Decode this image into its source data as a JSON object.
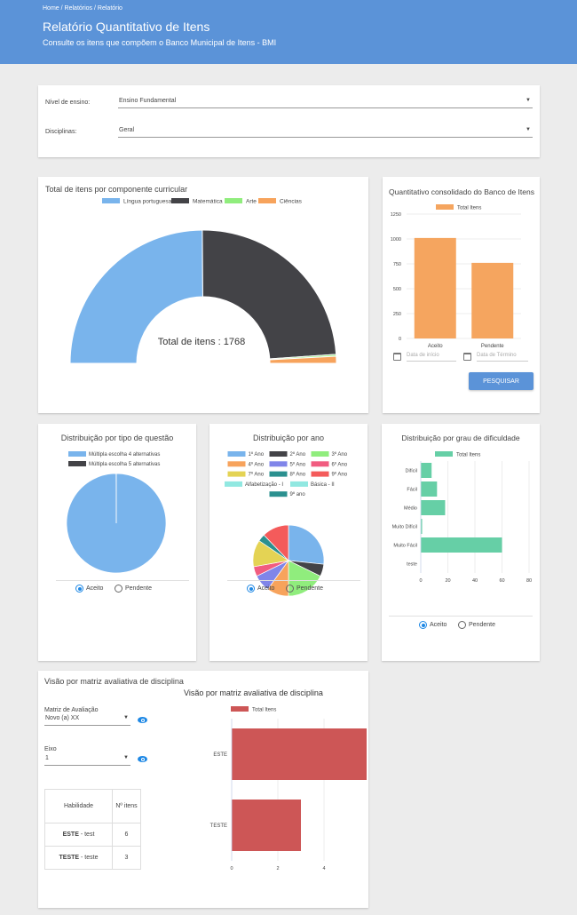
{
  "header": {
    "breadcrumb": [
      "Home",
      "Relatórios",
      "Relatório"
    ],
    "breadcrumb_sep": "/",
    "title": "Relatório Quantitativo de Itens",
    "subtitle": "Consulte os itens que compõem o Banco Municipal de Itens - BMI"
  },
  "filters": {
    "nivel_label": "Nível de ensino:",
    "nivel_value": "Ensino Fundamental",
    "disciplinas_label": "Disciplinas:",
    "disciplinas_value": "Geral"
  },
  "donut": {
    "title": "Total de itens por componente curricular",
    "center_label": "Total de itens : 1768",
    "chart_data": {
      "type": "pie",
      "variant": "half-donut",
      "categories": [
        "Língua portuguesa",
        "Matemática",
        "Arte",
        "Ciências"
      ],
      "values": [
        880,
        850,
        8,
        30
      ],
      "colors": [
        "#79b4ec",
        "#434347",
        "#90ed7d",
        "#f7a35c"
      ]
    }
  },
  "consolidado": {
    "title": "Quantitativo consolidado do Banco de Itens",
    "chart_data": {
      "type": "bar",
      "categories": [
        "Aceito",
        "Pendente"
      ],
      "series": [
        {
          "name": "Total Itens",
          "values": [
            1010,
            760
          ],
          "color": "#f5a55f"
        }
      ],
      "ylim": [
        0,
        1250
      ],
      "yticks": [
        0,
        250,
        500,
        750,
        1000,
        1250
      ]
    },
    "date_start_placeholder": "Data de início",
    "date_end_placeholder": "Data de Término",
    "button": "PESQUISAR"
  },
  "tipo": {
    "title": "Distribuição por tipo de questão",
    "chart_data": {
      "type": "pie",
      "categories": [
        "Múltipla escolha 4 alternativas",
        "Múltipla escolha 5 alternativas"
      ],
      "values": [
        1767,
        1
      ],
      "colors": [
        "#79b4ec",
        "#434347"
      ]
    },
    "radio_aceito": "Aceito",
    "radio_pendente": "Pendente"
  },
  "ano": {
    "title": "Distribuição por ano",
    "chart_data": {
      "type": "pie",
      "categories": [
        "1º Ano",
        "2º Ano",
        "3º Ano",
        "4º Ano",
        "5º Ano",
        "6º Ano",
        "7º Ano",
        "8º Ano",
        "9º Ano",
        "Alfabetização - I",
        "Básica - II",
        "9º ano"
      ],
      "values": [
        24,
        5,
        16,
        9,
        7,
        4,
        11,
        3,
        11,
        0,
        0,
        0
      ],
      "colors": [
        "#79b4ec",
        "#434347",
        "#90ed7d",
        "#f7a35c",
        "#8085e9",
        "#f15c80",
        "#e4d354",
        "#2b908f",
        "#f45b5b",
        "#91e8e1",
        "#91e8e1",
        "#2b908f"
      ]
    },
    "radio_aceito": "Aceito",
    "radio_pendente": "Pendente"
  },
  "dificuldade": {
    "title": "Distribuição por grau de dificuldade",
    "chart_data": {
      "type": "bar",
      "orientation": "horizontal",
      "categories": [
        "Difícil",
        "Fácil",
        "Médio",
        "Muito Difícil",
        "Muito Fácil",
        "teste"
      ],
      "series": [
        {
          "name": "Total Itens",
          "values": [
            8,
            12,
            18,
            1,
            60,
            0
          ],
          "color": "#66cfa6"
        }
      ],
      "xlim": [
        0,
        80
      ],
      "xticks": [
        0,
        20,
        40,
        60,
        80
      ]
    },
    "radio_aceito": "Aceito",
    "radio_pendente": "Pendente"
  },
  "matriz": {
    "title": "Visão por matriz avaliativa de disciplina",
    "matriz_label": "Matriz de Avaliação",
    "matriz_value": "Novo (a) XX",
    "eixo_label": "Eixo",
    "eixo_value": "1",
    "table_headers": [
      "Habilidade",
      "Nº itens"
    ],
    "table_rows": [
      {
        "code": "ESTE",
        "desc": " - test",
        "count": "6"
      },
      {
        "code": "TESTE",
        "desc": " - teste",
        "count": "3"
      }
    ],
    "chart_data": {
      "type": "bar",
      "orientation": "horizontal",
      "title": "Visão por matriz avaliativa de disciplina",
      "categories": [
        "ESTE",
        "TESTE"
      ],
      "series": [
        {
          "name": "Total Itens",
          "values": [
            6,
            3
          ],
          "color": "#cd5656"
        }
      ],
      "xlim": [
        0,
        6
      ],
      "xticks": [
        0,
        2,
        4,
        6
      ]
    }
  }
}
